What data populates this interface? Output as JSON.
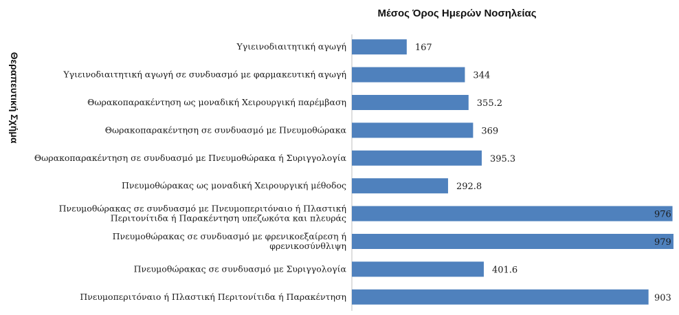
{
  "chart_data": {
    "type": "bar",
    "orientation": "horizontal",
    "title": "Μέσος Όρος Ημερών Νοσηλείας",
    "ylabel": "Θεραπευτική Σχήμα",
    "xlabel": "",
    "categories": [
      "Υγιεινοδιαιτητική αγωγή",
      "Υγιεινοδιαιτητική αγωγή σε συνδυασμό με φαρμακευτική αγωγή",
      "Θωρακοπαρακέντηση ως μοναδική Χειρουργική παρέμβαση",
      "Θωρακοπαρακέντηση σε συνδυασμό με Πνευμοθώρακα",
      "Θωρακοπαρακέντηση σε συνδυασμό με Πνευμοθώρακα ή Συριγγολογία",
      "Πνευμοθώρακας ως μοναδική Χειρουργική μέθοδος",
      [
        "Πνευμοθώρακας σε συνδυασμό με Πνευμοπεριτόναιο ή Πλαστική",
        "Περιτονίτιδα ή Παρακέντηση υπεζωκότα και πλευράς"
      ],
      [
        "Πνευμοθώρακας σε συνδυασμό με φρενικοεξαίρεση ή",
        "φρενικοσύνθλιψη"
      ],
      "Πνευμοθώρακας σε συνδυασμό με Συριγγολογία",
      "Πνευμοπεριτόναιο ή Πλαστική Περιτονίτιδα ή Παρακέντηση"
    ],
    "values": [
      167,
      344,
      355.2,
      369,
      395.3,
      292.8,
      976,
      979,
      401.6,
      903
    ],
    "value_labels": [
      "167",
      "344",
      "355.2",
      "369",
      "395.3",
      "292.8",
      "976",
      "979",
      "401.6",
      "903"
    ],
    "xlim": [
      0,
      1000
    ],
    "grid": false,
    "legend": "none",
    "bar_color": "#4f81bd"
  }
}
